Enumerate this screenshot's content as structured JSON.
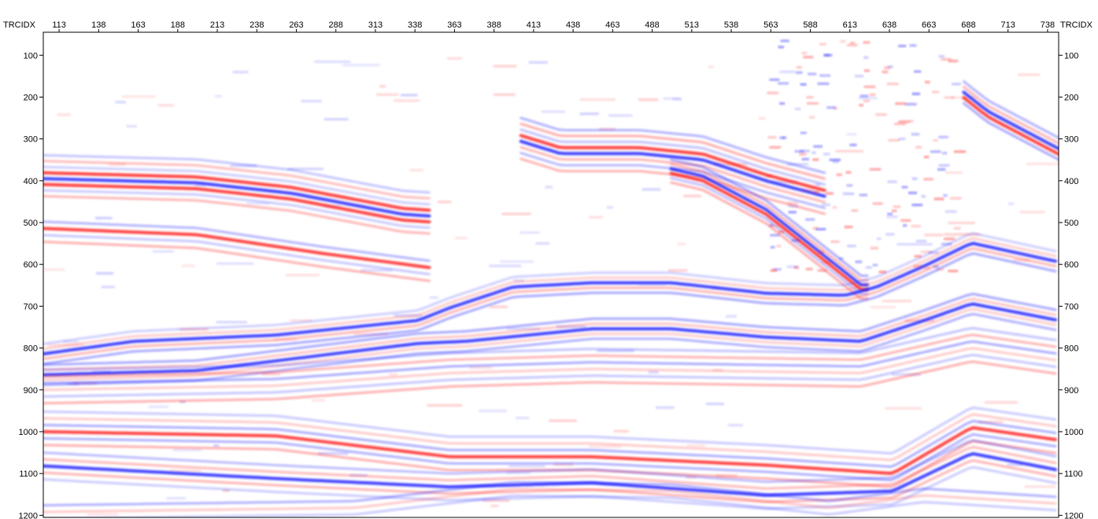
{
  "axis": {
    "top_label": "TRCIDX",
    "right_label": "TRCIDX",
    "trace_ticks": [
      "113",
      "138",
      "163",
      "188",
      "213",
      "238",
      "263",
      "288",
      "313",
      "338",
      "363",
      "388",
      "413",
      "438",
      "463",
      "488",
      "513",
      "538",
      "563",
      "588",
      "613",
      "638",
      "663",
      "688",
      "713",
      "738"
    ],
    "time_ticks": [
      "100",
      "200",
      "300",
      "400",
      "500",
      "600",
      "700",
      "800",
      "900",
      "1000",
      "1100",
      "1200"
    ]
  },
  "colors": {
    "background": "#ffffff",
    "positive": "#ff2020",
    "negative": "#2020ff",
    "frame": "#000000"
  },
  "display": {
    "type": "seismic-section",
    "colormap": "red-white-blue",
    "trace_range": [
      103,
      745
    ],
    "time_range": [
      45,
      1205
    ]
  }
}
